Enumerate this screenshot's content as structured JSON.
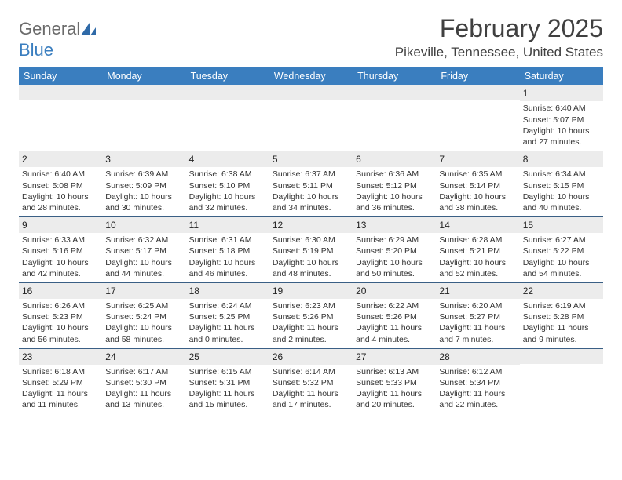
{
  "brand": {
    "general": "General",
    "blue": "Blue"
  },
  "title": "February 2025",
  "location": "Pikeville, Tennessee, United States",
  "colors": {
    "header_bg": "#3a7ebf",
    "header_text": "#ffffff",
    "daynum_bg": "#ececec",
    "row_border": "#3a5f85",
    "title_color": "#404040"
  },
  "day_names": [
    "Sunday",
    "Monday",
    "Tuesday",
    "Wednesday",
    "Thursday",
    "Friday",
    "Saturday"
  ],
  "weeks": [
    [
      {
        "n": "",
        "lines": [
          "",
          "",
          "",
          ""
        ]
      },
      {
        "n": "",
        "lines": [
          "",
          "",
          "",
          ""
        ]
      },
      {
        "n": "",
        "lines": [
          "",
          "",
          "",
          ""
        ]
      },
      {
        "n": "",
        "lines": [
          "",
          "",
          "",
          ""
        ]
      },
      {
        "n": "",
        "lines": [
          "",
          "",
          "",
          ""
        ]
      },
      {
        "n": "",
        "lines": [
          "",
          "",
          "",
          ""
        ]
      },
      {
        "n": "1",
        "lines": [
          "Sunrise: 6:40 AM",
          "Sunset: 5:07 PM",
          "Daylight: 10 hours",
          "and 27 minutes."
        ]
      }
    ],
    [
      {
        "n": "2",
        "lines": [
          "Sunrise: 6:40 AM",
          "Sunset: 5:08 PM",
          "Daylight: 10 hours",
          "and 28 minutes."
        ]
      },
      {
        "n": "3",
        "lines": [
          "Sunrise: 6:39 AM",
          "Sunset: 5:09 PM",
          "Daylight: 10 hours",
          "and 30 minutes."
        ]
      },
      {
        "n": "4",
        "lines": [
          "Sunrise: 6:38 AM",
          "Sunset: 5:10 PM",
          "Daylight: 10 hours",
          "and 32 minutes."
        ]
      },
      {
        "n": "5",
        "lines": [
          "Sunrise: 6:37 AM",
          "Sunset: 5:11 PM",
          "Daylight: 10 hours",
          "and 34 minutes."
        ]
      },
      {
        "n": "6",
        "lines": [
          "Sunrise: 6:36 AM",
          "Sunset: 5:12 PM",
          "Daylight: 10 hours",
          "and 36 minutes."
        ]
      },
      {
        "n": "7",
        "lines": [
          "Sunrise: 6:35 AM",
          "Sunset: 5:14 PM",
          "Daylight: 10 hours",
          "and 38 minutes."
        ]
      },
      {
        "n": "8",
        "lines": [
          "Sunrise: 6:34 AM",
          "Sunset: 5:15 PM",
          "Daylight: 10 hours",
          "and 40 minutes."
        ]
      }
    ],
    [
      {
        "n": "9",
        "lines": [
          "Sunrise: 6:33 AM",
          "Sunset: 5:16 PM",
          "Daylight: 10 hours",
          "and 42 minutes."
        ]
      },
      {
        "n": "10",
        "lines": [
          "Sunrise: 6:32 AM",
          "Sunset: 5:17 PM",
          "Daylight: 10 hours",
          "and 44 minutes."
        ]
      },
      {
        "n": "11",
        "lines": [
          "Sunrise: 6:31 AM",
          "Sunset: 5:18 PM",
          "Daylight: 10 hours",
          "and 46 minutes."
        ]
      },
      {
        "n": "12",
        "lines": [
          "Sunrise: 6:30 AM",
          "Sunset: 5:19 PM",
          "Daylight: 10 hours",
          "and 48 minutes."
        ]
      },
      {
        "n": "13",
        "lines": [
          "Sunrise: 6:29 AM",
          "Sunset: 5:20 PM",
          "Daylight: 10 hours",
          "and 50 minutes."
        ]
      },
      {
        "n": "14",
        "lines": [
          "Sunrise: 6:28 AM",
          "Sunset: 5:21 PM",
          "Daylight: 10 hours",
          "and 52 minutes."
        ]
      },
      {
        "n": "15",
        "lines": [
          "Sunrise: 6:27 AM",
          "Sunset: 5:22 PM",
          "Daylight: 10 hours",
          "and 54 minutes."
        ]
      }
    ],
    [
      {
        "n": "16",
        "lines": [
          "Sunrise: 6:26 AM",
          "Sunset: 5:23 PM",
          "Daylight: 10 hours",
          "and 56 minutes."
        ]
      },
      {
        "n": "17",
        "lines": [
          "Sunrise: 6:25 AM",
          "Sunset: 5:24 PM",
          "Daylight: 10 hours",
          "and 58 minutes."
        ]
      },
      {
        "n": "18",
        "lines": [
          "Sunrise: 6:24 AM",
          "Sunset: 5:25 PM",
          "Daylight: 11 hours",
          "and 0 minutes."
        ]
      },
      {
        "n": "19",
        "lines": [
          "Sunrise: 6:23 AM",
          "Sunset: 5:26 PM",
          "Daylight: 11 hours",
          "and 2 minutes."
        ]
      },
      {
        "n": "20",
        "lines": [
          "Sunrise: 6:22 AM",
          "Sunset: 5:26 PM",
          "Daylight: 11 hours",
          "and 4 minutes."
        ]
      },
      {
        "n": "21",
        "lines": [
          "Sunrise: 6:20 AM",
          "Sunset: 5:27 PM",
          "Daylight: 11 hours",
          "and 7 minutes."
        ]
      },
      {
        "n": "22",
        "lines": [
          "Sunrise: 6:19 AM",
          "Sunset: 5:28 PM",
          "Daylight: 11 hours",
          "and 9 minutes."
        ]
      }
    ],
    [
      {
        "n": "23",
        "lines": [
          "Sunrise: 6:18 AM",
          "Sunset: 5:29 PM",
          "Daylight: 11 hours",
          "and 11 minutes."
        ]
      },
      {
        "n": "24",
        "lines": [
          "Sunrise: 6:17 AM",
          "Sunset: 5:30 PM",
          "Daylight: 11 hours",
          "and 13 minutes."
        ]
      },
      {
        "n": "25",
        "lines": [
          "Sunrise: 6:15 AM",
          "Sunset: 5:31 PM",
          "Daylight: 11 hours",
          "and 15 minutes."
        ]
      },
      {
        "n": "26",
        "lines": [
          "Sunrise: 6:14 AM",
          "Sunset: 5:32 PM",
          "Daylight: 11 hours",
          "and 17 minutes."
        ]
      },
      {
        "n": "27",
        "lines": [
          "Sunrise: 6:13 AM",
          "Sunset: 5:33 PM",
          "Daylight: 11 hours",
          "and 20 minutes."
        ]
      },
      {
        "n": "28",
        "lines": [
          "Sunrise: 6:12 AM",
          "Sunset: 5:34 PM",
          "Daylight: 11 hours",
          "and 22 minutes."
        ]
      },
      {
        "n": "",
        "lines": [
          "",
          "",
          "",
          ""
        ]
      }
    ]
  ]
}
